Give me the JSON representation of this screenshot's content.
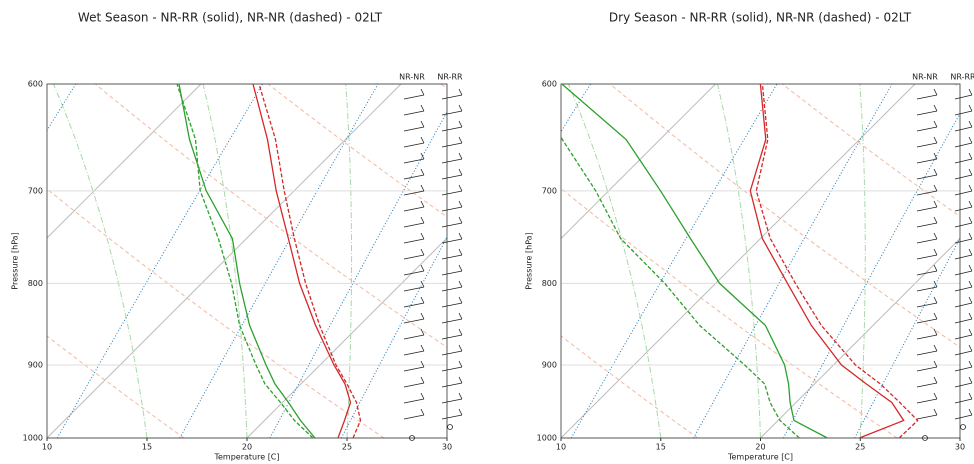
{
  "chart_data": [
    {
      "type": "line",
      "title": "Wet Season - NR-RR (solid), NR-NR (dashed) - 02LT",
      "xlabel": "Temperature [C]",
      "ylabel": "Pressure [hPa]",
      "ylog": true,
      "xlim": [
        10,
        30
      ],
      "ylim": [
        1000,
        600
      ],
      "xticks": [
        10,
        15,
        20,
        25,
        30
      ],
      "yticks": [
        1000,
        900,
        800,
        700,
        600
      ],
      "barb_labels": [
        "NR-NR",
        "NR-RR"
      ],
      "y": [
        1000,
        975,
        950,
        925,
        900,
        850,
        800,
        750,
        700,
        650,
        600
      ],
      "series": [
        {
          "color": "#d62728",
          "dashed": false,
          "values": [
            24.55,
            24.0,
            23.4,
            22.2,
            20.7,
            17.8,
            14.9,
            12.1,
            9.1,
            6.1,
            2.6
          ]
        },
        {
          "color": "#d62728",
          "dashed": true,
          "values": [
            25.3,
            24.8,
            23.7,
            22.3,
            20.8,
            18.0,
            15.2,
            12.4,
            9.5,
            6.5,
            2.9
          ]
        },
        {
          "color": "#2ca02c",
          "dashed": false,
          "values": [
            23.4,
            21.8,
            20.3,
            18.7,
            17.3,
            14.5,
            11.9,
            9.3,
            5.6,
            2.2,
            -1.1
          ]
        },
        {
          "color": "#2ca02c",
          "dashed": true,
          "values": [
            23.3,
            21.5,
            19.9,
            18.2,
            16.8,
            14.0,
            11.5,
            8.6,
            5.3,
            2.5,
            -1.2
          ]
        }
      ]
    },
    {
      "type": "line",
      "title": "Dry Season - NR-RR (solid), NR-NR (dashed) - 02LT",
      "xlabel": "Temperature [C]",
      "ylabel": "Pressure [hPa]",
      "ylog": true,
      "xlim": [
        10,
        30
      ],
      "ylim": [
        1000,
        600
      ],
      "xticks": [
        10,
        15,
        20,
        25,
        30
      ],
      "yticks": [
        1000,
        900,
        800,
        700,
        600
      ],
      "barb_labels": [
        "NR-NR",
        "NR-RR"
      ],
      "y": [
        1000,
        975,
        950,
        925,
        900,
        850,
        800,
        750,
        700,
        650,
        600
      ],
      "series": [
        {
          "color": "#d62728",
          "dashed": false,
          "values": [
            24.95,
            26.3,
            24.8,
            22.6,
            20.4,
            16.9,
            13.6,
            10.1,
            7.1,
            5.3,
            2.25
          ]
        },
        {
          "color": "#d62728",
          "dashed": true,
          "values": [
            26.95,
            27.0,
            25.2,
            23.3,
            21.1,
            17.4,
            14.0,
            10.5,
            7.4,
            5.4,
            2.35
          ]
        },
        {
          "color": "#2ca02c",
          "dashed": false,
          "values": [
            23.35,
            20.8,
            19.7,
            18.7,
            17.55,
            14.6,
            10.2,
            6.5,
            2.6,
            -1.7,
            -7.7
          ]
        },
        {
          "color": "#2ca02c",
          "dashed": true,
          "values": [
            21.95,
            20.1,
            18.7,
            17.5,
            15.55,
            11.3,
            7.45,
            3.0,
            -0.65,
            -4.9,
            -9
          ]
        }
      ]
    }
  ]
}
